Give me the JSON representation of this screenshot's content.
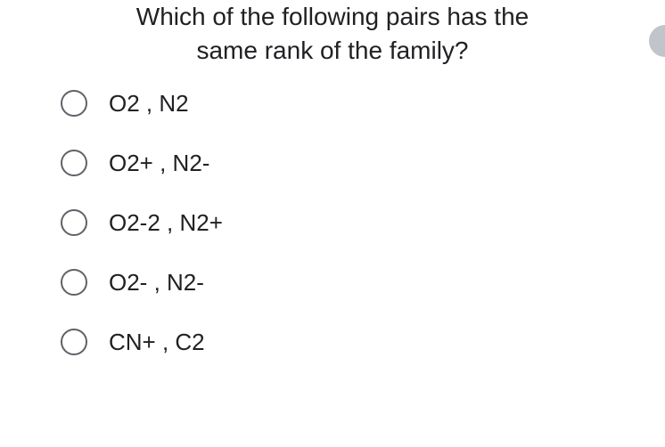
{
  "question": {
    "line1": "Which of the following pairs has the",
    "line2": "same rank of the family?"
  },
  "options": [
    {
      "label": "O2 , N2"
    },
    {
      "label": "O2+ , N2-"
    },
    {
      "label": "O2-2 , N2+"
    },
    {
      "label": "O2- , N2-"
    },
    {
      "label": "CN+ , C2"
    }
  ],
  "styles": {
    "text_color": "#202124",
    "radio_border_color": "#5f6368",
    "background_color": "#ffffff",
    "indicator_color": "#c0c5cc",
    "question_fontsize": 28,
    "option_fontsize": 26
  }
}
